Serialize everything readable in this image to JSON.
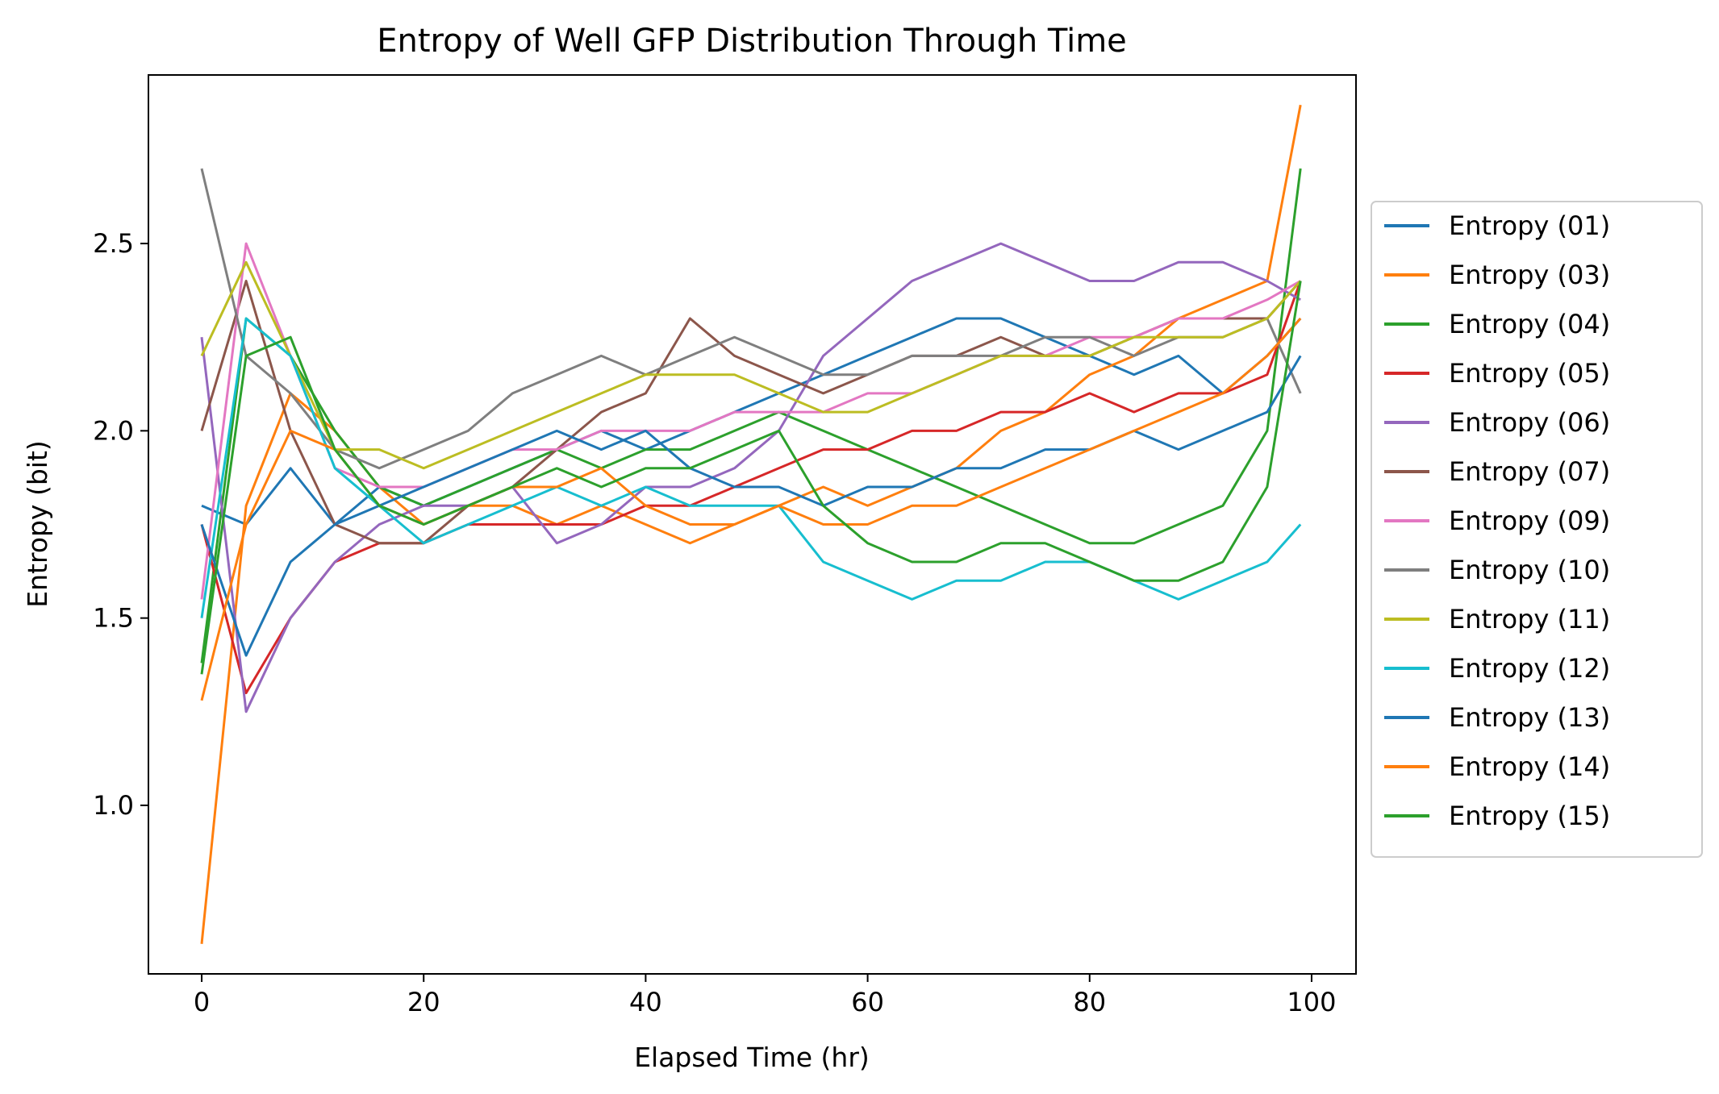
{
  "chart_data": {
    "type": "line",
    "title": "Entropy of Well GFP Distribution Through Time",
    "xlabel": "Elapsed Time (hr)",
    "ylabel": "Entropy (bit)",
    "xlim": [
      -4.8,
      104.0
    ],
    "ylim": [
      0.55,
      2.95
    ],
    "xticks": [
      0,
      20,
      40,
      60,
      80,
      100
    ],
    "yticks": [
      1.0,
      1.5,
      2.0,
      2.5
    ],
    "xtick_labels": [
      "0",
      "20",
      "40",
      "60",
      "80",
      "100"
    ],
    "ytick_labels": [
      "1.0",
      "1.5",
      "2.0",
      "2.5"
    ],
    "grid": false,
    "legend_position": "right",
    "x": [
      0,
      4,
      8,
      12,
      16,
      20,
      24,
      28,
      32,
      36,
      40,
      44,
      48,
      52,
      56,
      60,
      64,
      68,
      72,
      76,
      80,
      84,
      88,
      92,
      96,
      99
    ],
    "series": [
      {
        "name": "Entropy (01)",
        "color": "#1f77b4",
        "values": [
          1.8,
          1.75,
          1.9,
          1.75,
          1.85,
          1.8,
          1.85,
          1.9,
          1.95,
          2.0,
          1.95,
          2.0,
          2.05,
          2.1,
          2.15,
          2.2,
          2.25,
          2.3,
          2.3,
          2.25,
          2.2,
          2.15,
          2.2,
          2.1,
          2.2,
          2.3
        ]
      },
      {
        "name": "Entropy (03)",
        "color": "#ff7f0e",
        "values": [
          0.63,
          1.8,
          2.1,
          2.0,
          1.85,
          1.75,
          1.8,
          1.8,
          1.75,
          1.8,
          1.75,
          1.7,
          1.75,
          1.8,
          1.85,
          1.8,
          1.85,
          1.9,
          2.0,
          2.05,
          2.15,
          2.2,
          2.3,
          2.35,
          2.4,
          2.87
        ]
      },
      {
        "name": "Entropy (04)",
        "color": "#2ca02c",
        "values": [
          1.38,
          2.3,
          2.2,
          2.0,
          1.85,
          1.8,
          1.85,
          1.9,
          1.95,
          1.9,
          1.95,
          1.95,
          2.0,
          2.05,
          2.0,
          1.95,
          1.9,
          1.85,
          1.8,
          1.75,
          1.7,
          1.7,
          1.75,
          1.8,
          2.0,
          2.7
        ]
      },
      {
        "name": "Entropy (05)",
        "color": "#d62728",
        "values": [
          1.75,
          1.3,
          1.5,
          1.65,
          1.7,
          1.7,
          1.75,
          1.75,
          1.75,
          1.75,
          1.8,
          1.8,
          1.85,
          1.9,
          1.95,
          1.95,
          2.0,
          2.0,
          2.05,
          2.05,
          2.1,
          2.05,
          2.1,
          2.1,
          2.15,
          2.4
        ]
      },
      {
        "name": "Entropy (06)",
        "color": "#9467bd",
        "values": [
          2.25,
          1.25,
          1.5,
          1.65,
          1.75,
          1.8,
          1.8,
          1.85,
          1.7,
          1.75,
          1.85,
          1.85,
          1.9,
          2.0,
          2.2,
          2.3,
          2.4,
          2.45,
          2.5,
          2.45,
          2.4,
          2.4,
          2.45,
          2.45,
          2.4,
          2.35
        ]
      },
      {
        "name": "Entropy (07)",
        "color": "#8c564b",
        "values": [
          2.0,
          2.4,
          2.0,
          1.75,
          1.7,
          1.7,
          1.8,
          1.85,
          1.95,
          2.05,
          2.1,
          2.3,
          2.2,
          2.15,
          2.1,
          2.15,
          2.2,
          2.2,
          2.25,
          2.2,
          2.2,
          2.25,
          2.3,
          2.3,
          2.3,
          2.4
        ]
      },
      {
        "name": "Entropy (09)",
        "color": "#e377c2",
        "values": [
          1.55,
          2.5,
          2.2,
          1.9,
          1.85,
          1.85,
          1.9,
          1.95,
          1.95,
          2.0,
          2.0,
          2.0,
          2.05,
          2.05,
          2.05,
          2.1,
          2.1,
          2.15,
          2.2,
          2.2,
          2.25,
          2.25,
          2.3,
          2.3,
          2.35,
          2.4
        ]
      },
      {
        "name": "Entropy (10)",
        "color": "#7f7f7f",
        "values": [
          2.7,
          2.2,
          2.1,
          1.95,
          1.9,
          1.95,
          2.0,
          2.1,
          2.15,
          2.2,
          2.15,
          2.2,
          2.25,
          2.2,
          2.15,
          2.15,
          2.2,
          2.2,
          2.2,
          2.25,
          2.25,
          2.2,
          2.25,
          2.25,
          2.3,
          2.1
        ]
      },
      {
        "name": "Entropy (11)",
        "color": "#bcbd22",
        "values": [
          2.2,
          2.45,
          2.2,
          1.95,
          1.95,
          1.9,
          1.95,
          2.0,
          2.05,
          2.1,
          2.15,
          2.15,
          2.15,
          2.1,
          2.05,
          2.05,
          2.1,
          2.15,
          2.2,
          2.2,
          2.2,
          2.25,
          2.25,
          2.25,
          2.3,
          2.4
        ]
      },
      {
        "name": "Entropy (12)",
        "color": "#17becf",
        "values": [
          1.5,
          2.3,
          2.2,
          1.9,
          1.8,
          1.7,
          1.75,
          1.8,
          1.85,
          1.8,
          1.85,
          1.8,
          1.8,
          1.8,
          1.65,
          1.6,
          1.55,
          1.6,
          1.6,
          1.65,
          1.65,
          1.6,
          1.55,
          1.6,
          1.65,
          1.75
        ]
      },
      {
        "name": "Entropy (13)",
        "color": "#1f77b4",
        "values": [
          1.75,
          1.4,
          1.65,
          1.75,
          1.8,
          1.85,
          1.9,
          1.95,
          2.0,
          1.95,
          2.0,
          1.9,
          1.85,
          1.85,
          1.8,
          1.85,
          1.85,
          1.9,
          1.9,
          1.95,
          1.95,
          2.0,
          1.95,
          2.0,
          2.05,
          2.2
        ]
      },
      {
        "name": "Entropy (14)",
        "color": "#ff7f0e",
        "values": [
          1.28,
          1.75,
          2.0,
          1.95,
          1.8,
          1.75,
          1.8,
          1.85,
          1.85,
          1.9,
          1.8,
          1.75,
          1.75,
          1.8,
          1.75,
          1.75,
          1.8,
          1.8,
          1.85,
          1.9,
          1.95,
          2.0,
          2.05,
          2.1,
          2.2,
          2.3
        ]
      },
      {
        "name": "Entropy (15)",
        "color": "#2ca02c",
        "values": [
          1.35,
          2.2,
          2.25,
          1.95,
          1.8,
          1.75,
          1.8,
          1.85,
          1.9,
          1.85,
          1.9,
          1.9,
          1.95,
          2.0,
          1.8,
          1.7,
          1.65,
          1.65,
          1.7,
          1.7,
          1.65,
          1.6,
          1.6,
          1.65,
          1.85,
          2.4
        ]
      }
    ]
  }
}
